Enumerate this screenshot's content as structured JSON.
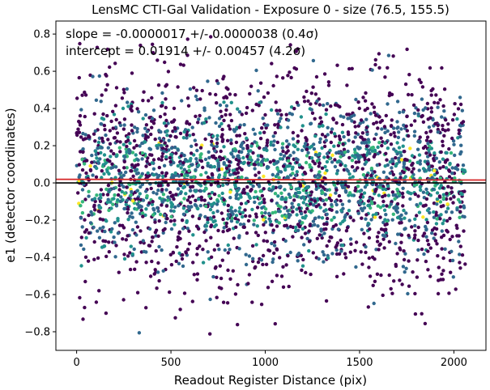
{
  "chart_data": {
    "type": "scatter",
    "title": "LensMC CTI-Gal Validation - Exposure 0 - size (76.5, 155.5)",
    "xlabel": "Readout Register Distance (pix)",
    "ylabel": "e1 (detector coordinates)",
    "xlim": [
      -110,
      2170
    ],
    "ylim": [
      -0.9,
      0.87
    ],
    "xticks": [
      0,
      500,
      1000,
      1500,
      2000
    ],
    "yticks": [
      -0.8,
      -0.6,
      -0.4,
      -0.2,
      0.0,
      0.2,
      0.4,
      0.6,
      0.8
    ],
    "ytick_labels": [
      "−0.8",
      "−0.6",
      "−0.4",
      "−0.2",
      "0.0",
      "0.2",
      "0.4",
      "0.6",
      "0.8"
    ],
    "annotations": [
      "slope = -0.0000017 +/- 0.0000038 (0.4σ)",
      "intercept = 0.01914 +/- 0.00457 (4.2σ)"
    ],
    "fit_line": {
      "slope": -1.7e-06,
      "intercept": 0.01914,
      "color": "#d62728"
    },
    "zero_line": {
      "y": 0.0,
      "color": "#000000"
    },
    "point_colors": {
      "low": "#440154",
      "mid": "#31688e",
      "teal": "#21918c",
      "green": "#35b779",
      "high": "#fde725"
    },
    "x_range_points": [
      0,
      2060
    ],
    "grid": false,
    "legend": "none"
  }
}
